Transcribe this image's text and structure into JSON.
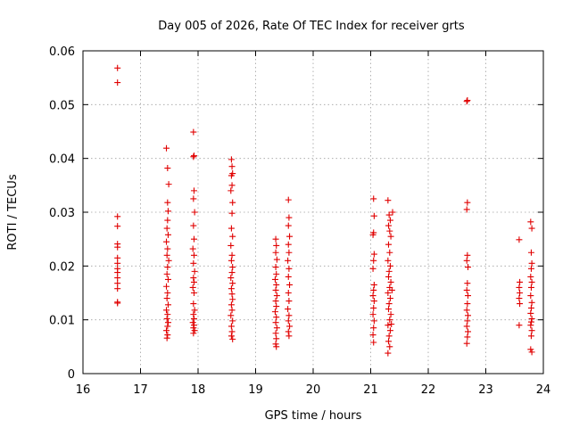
{
  "chart_data": {
    "type": "scatter",
    "title": "Day 005 of 2026, Rate Of TEC Index for receiver grts",
    "xlabel": "GPS time / hours",
    "ylabel": "ROTI / TECUs",
    "xlim": [
      16,
      24
    ],
    "ylim": [
      0,
      0.06
    ],
    "x_ticks": [
      "16",
      "17",
      "18",
      "19",
      "20",
      "21",
      "22",
      "23",
      "24"
    ],
    "y_ticks": [
      "0",
      "0.01",
      "0.02",
      "0.03",
      "0.04",
      "0.05",
      "0.06"
    ],
    "grid": true,
    "marker": "+",
    "series": [
      {
        "name": "ROTI",
        "color": "#e00000",
        "points": [
          [
            16.6,
            0.0568
          ],
          [
            16.6,
            0.0541
          ],
          [
            16.6,
            0.0292
          ],
          [
            16.6,
            0.0274
          ],
          [
            16.6,
            0.0241
          ],
          [
            16.6,
            0.0235
          ],
          [
            16.6,
            0.0215
          ],
          [
            16.6,
            0.0205
          ],
          [
            16.6,
            0.0195
          ],
          [
            16.6,
            0.0188
          ],
          [
            16.6,
            0.0178
          ],
          [
            16.6,
            0.0168
          ],
          [
            16.6,
            0.0158
          ],
          [
            16.6,
            0.0133
          ],
          [
            16.6,
            0.0131
          ],
          [
            17.45,
            0.0419
          ],
          [
            17.47,
            0.0382
          ],
          [
            17.49,
            0.0352
          ],
          [
            17.47,
            0.0318
          ],
          [
            17.48,
            0.0302
          ],
          [
            17.47,
            0.0285
          ],
          [
            17.46,
            0.027
          ],
          [
            17.48,
            0.0258
          ],
          [
            17.45,
            0.0245
          ],
          [
            17.47,
            0.0232
          ],
          [
            17.46,
            0.022
          ],
          [
            17.49,
            0.021
          ],
          [
            17.47,
            0.0198
          ],
          [
            17.46,
            0.0185
          ],
          [
            17.48,
            0.0175
          ],
          [
            17.45,
            0.0162
          ],
          [
            17.47,
            0.015
          ],
          [
            17.46,
            0.014
          ],
          [
            17.48,
            0.0128
          ],
          [
            17.45,
            0.0118
          ],
          [
            17.47,
            0.011
          ],
          [
            17.46,
            0.0102
          ],
          [
            17.48,
            0.0095
          ],
          [
            17.47,
            0.0088
          ],
          [
            17.45,
            0.008
          ],
          [
            17.47,
            0.0072
          ],
          [
            17.46,
            0.0066
          ],
          [
            17.92,
            0.0449
          ],
          [
            17.93,
            0.0405
          ],
          [
            17.92,
            0.0403
          ],
          [
            17.93,
            0.034
          ],
          [
            17.92,
            0.0325
          ],
          [
            17.94,
            0.03
          ],
          [
            17.92,
            0.0275
          ],
          [
            17.93,
            0.025
          ],
          [
            17.91,
            0.0232
          ],
          [
            17.93,
            0.022
          ],
          [
            17.92,
            0.0205
          ],
          [
            17.94,
            0.019
          ],
          [
            17.92,
            0.0178
          ],
          [
            17.93,
            0.017
          ],
          [
            17.91,
            0.016
          ],
          [
            17.93,
            0.015
          ],
          [
            17.92,
            0.013
          ],
          [
            17.94,
            0.0118
          ],
          [
            17.92,
            0.011
          ],
          [
            17.93,
            0.0102
          ],
          [
            17.91,
            0.0095
          ],
          [
            17.93,
            0.009
          ],
          [
            17.92,
            0.0085
          ],
          [
            17.94,
            0.008
          ],
          [
            17.92,
            0.0075
          ],
          [
            18.58,
            0.0398
          ],
          [
            18.59,
            0.0385
          ],
          [
            18.6,
            0.0372
          ],
          [
            18.58,
            0.0368
          ],
          [
            18.59,
            0.035
          ],
          [
            18.57,
            0.034
          ],
          [
            18.6,
            0.0318
          ],
          [
            18.59,
            0.0298
          ],
          [
            18.58,
            0.027
          ],
          [
            18.6,
            0.0255
          ],
          [
            18.57,
            0.0238
          ],
          [
            18.59,
            0.022
          ],
          [
            18.58,
            0.021
          ],
          [
            18.6,
            0.0198
          ],
          [
            18.59,
            0.0188
          ],
          [
            18.57,
            0.0178
          ],
          [
            18.6,
            0.0168
          ],
          [
            18.58,
            0.0158
          ],
          [
            18.59,
            0.0148
          ],
          [
            18.6,
            0.0138
          ],
          [
            18.58,
            0.0128
          ],
          [
            18.59,
            0.0118
          ],
          [
            18.57,
            0.0108
          ],
          [
            18.6,
            0.0098
          ],
          [
            18.58,
            0.0088
          ],
          [
            18.59,
            0.0078
          ],
          [
            18.58,
            0.007
          ],
          [
            18.6,
            0.0064
          ],
          [
            19.35,
            0.025
          ],
          [
            19.36,
            0.0238
          ],
          [
            19.35,
            0.0225
          ],
          [
            19.37,
            0.0212
          ],
          [
            19.35,
            0.0198
          ],
          [
            19.36,
            0.0185
          ],
          [
            19.34,
            0.0175
          ],
          [
            19.36,
            0.0165
          ],
          [
            19.35,
            0.0155
          ],
          [
            19.37,
            0.0145
          ],
          [
            19.35,
            0.0135
          ],
          [
            19.36,
            0.0125
          ],
          [
            19.34,
            0.0115
          ],
          [
            19.36,
            0.0105
          ],
          [
            19.35,
            0.0095
          ],
          [
            19.37,
            0.0085
          ],
          [
            19.35,
            0.0075
          ],
          [
            19.36,
            0.0065
          ],
          [
            19.35,
            0.0055
          ],
          [
            19.36,
            0.005
          ],
          [
            19.57,
            0.0323
          ],
          [
            19.58,
            0.029
          ],
          [
            19.57,
            0.0275
          ],
          [
            19.59,
            0.0255
          ],
          [
            19.57,
            0.024
          ],
          [
            19.58,
            0.0225
          ],
          [
            19.56,
            0.021
          ],
          [
            19.58,
            0.0195
          ],
          [
            19.57,
            0.018
          ],
          [
            19.59,
            0.0165
          ],
          [
            19.57,
            0.015
          ],
          [
            19.58,
            0.0135
          ],
          [
            19.56,
            0.012
          ],
          [
            19.58,
            0.0108
          ],
          [
            19.57,
            0.0098
          ],
          [
            19.59,
            0.0088
          ],
          [
            19.57,
            0.0078
          ],
          [
            19.58,
            0.007
          ],
          [
            21.05,
            0.0325
          ],
          [
            21.06,
            0.0293
          ],
          [
            21.05,
            0.0262
          ],
          [
            21.04,
            0.0258
          ],
          [
            21.06,
            0.0222
          ],
          [
            21.05,
            0.021
          ],
          [
            21.04,
            0.0195
          ],
          [
            21.06,
            0.0165
          ],
          [
            21.05,
            0.0155
          ],
          [
            21.04,
            0.0145
          ],
          [
            21.06,
            0.0135
          ],
          [
            21.05,
            0.0122
          ],
          [
            21.04,
            0.011
          ],
          [
            21.06,
            0.0098
          ],
          [
            21.05,
            0.0085
          ],
          [
            21.04,
            0.0072
          ],
          [
            21.05,
            0.0058
          ],
          [
            21.3,
            0.0322
          ],
          [
            21.32,
            0.0295
          ],
          [
            21.34,
            0.0285
          ],
          [
            21.31,
            0.0275
          ],
          [
            21.33,
            0.0265
          ],
          [
            21.35,
            0.0255
          ],
          [
            21.31,
            0.024
          ],
          [
            21.33,
            0.0225
          ],
          [
            21.3,
            0.021
          ],
          [
            21.34,
            0.02
          ],
          [
            21.32,
            0.019
          ],
          [
            21.31,
            0.018
          ],
          [
            21.35,
            0.017
          ],
          [
            21.33,
            0.016
          ],
          [
            21.3,
            0.015
          ],
          [
            21.34,
            0.014
          ],
          [
            21.32,
            0.013
          ],
          [
            21.31,
            0.012
          ],
          [
            21.35,
            0.011
          ],
          [
            21.33,
            0.01
          ],
          [
            21.3,
            0.009
          ],
          [
            21.34,
            0.008
          ],
          [
            21.32,
            0.007
          ],
          [
            21.31,
            0.006
          ],
          [
            21.33,
            0.005
          ],
          [
            21.3,
            0.0038
          ],
          [
            21.38,
            0.03
          ],
          [
            21.37,
            0.0155
          ],
          [
            21.36,
            0.0092
          ],
          [
            22.68,
            0.0508
          ],
          [
            22.67,
            0.0506
          ],
          [
            22.68,
            0.0318
          ],
          [
            22.67,
            0.0305
          ],
          [
            22.68,
            0.022
          ],
          [
            22.67,
            0.021
          ],
          [
            22.69,
            0.0198
          ],
          [
            22.68,
            0.0168
          ],
          [
            22.67,
            0.0155
          ],
          [
            22.69,
            0.0145
          ],
          [
            22.68,
            0.013
          ],
          [
            22.67,
            0.0118
          ],
          [
            22.69,
            0.0108
          ],
          [
            22.68,
            0.0098
          ],
          [
            22.67,
            0.0088
          ],
          [
            22.69,
            0.0078
          ],
          [
            22.68,
            0.0068
          ],
          [
            22.67,
            0.0056
          ],
          [
            23.58,
            0.0249
          ],
          [
            23.59,
            0.017
          ],
          [
            23.58,
            0.016
          ],
          [
            23.59,
            0.015
          ],
          [
            23.58,
            0.014
          ],
          [
            23.59,
            0.013
          ],
          [
            23.58,
            0.009
          ],
          [
            23.78,
            0.0282
          ],
          [
            23.8,
            0.027
          ],
          [
            23.79,
            0.0225
          ],
          [
            23.8,
            0.0205
          ],
          [
            23.79,
            0.0195
          ],
          [
            23.78,
            0.018
          ],
          [
            23.8,
            0.017
          ],
          [
            23.79,
            0.016
          ],
          [
            23.78,
            0.0145
          ],
          [
            23.8,
            0.0132
          ],
          [
            23.79,
            0.0122
          ],
          [
            23.78,
            0.0112
          ],
          [
            23.8,
            0.0102
          ],
          [
            23.79,
            0.0096
          ],
          [
            23.78,
            0.009
          ],
          [
            23.8,
            0.008
          ],
          [
            23.79,
            0.007
          ],
          [
            23.78,
            0.0045
          ],
          [
            23.8,
            0.004
          ]
        ]
      }
    ]
  }
}
